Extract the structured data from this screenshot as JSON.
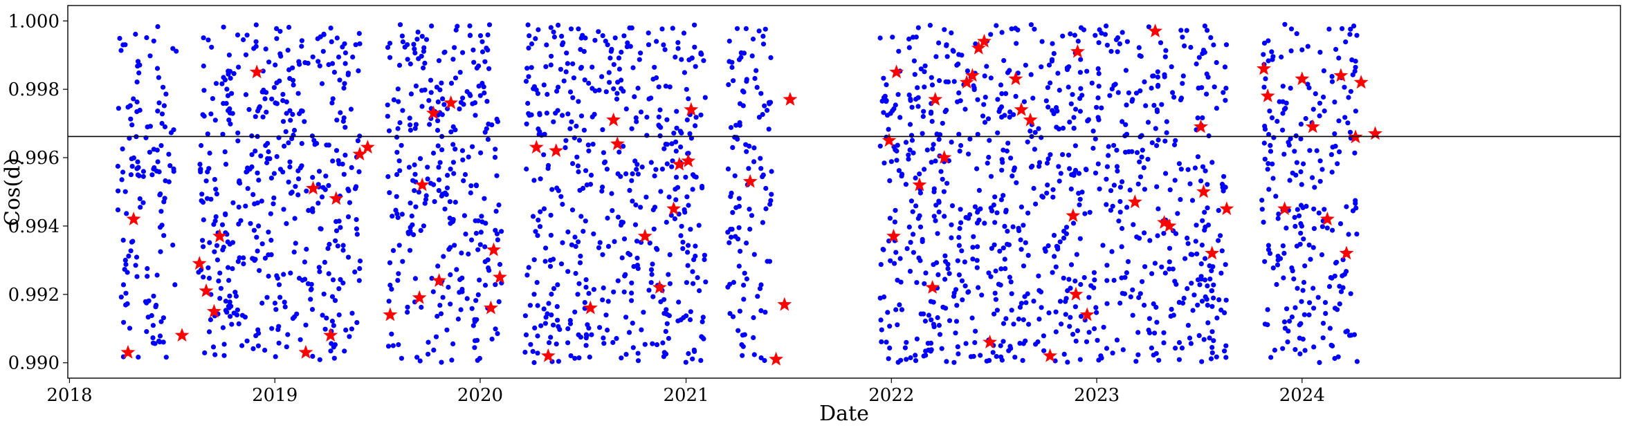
{
  "chart_data": {
    "type": "scatter",
    "xlabel": "Date",
    "ylabel": "Cos(d)",
    "xlim": [
      "2017-12-29",
      "2025-07-20"
    ],
    "ylim": [
      0.98955,
      1.00045
    ],
    "x_ticks": [
      "2018",
      "2019",
      "2020",
      "2021",
      "2022",
      "2023",
      "2024"
    ],
    "y_ticks": [
      "0.990",
      "0.992",
      "0.994",
      "0.996",
      "0.998",
      "1.000"
    ],
    "grid": false,
    "reference_line": {
      "y": 0.99662,
      "color": "#000000"
    },
    "series": [
      {
        "marker": "circle",
        "color": "#0000ff",
        "note_visible": "dense uniform scatter across observation windows",
        "observation_windows": [
          [
            "2018-03-28",
            "2018-07-10"
          ],
          [
            "2018-08-18",
            "2019-06-02"
          ],
          [
            "2019-07-20",
            "2020-02-08"
          ],
          [
            "2020-03-20",
            "2020-10-18"
          ],
          [
            "2020-10-20",
            "2021-02-05"
          ],
          [
            "2021-03-15",
            "2021-06-02"
          ],
          [
            "2021-12-12",
            "2022-01-20"
          ],
          [
            "2022-01-25",
            "2022-09-15"
          ],
          [
            "2022-09-18",
            "2023-08-20"
          ],
          [
            "2023-10-20",
            "2024-04-08"
          ]
        ],
        "count": 2600,
        "y_range": [
          0.99,
          0.9999
        ]
      },
      {
        "marker": "star",
        "color": "#ff0000",
        "points": [
          [
            "2018-04-15",
            0.9903
          ],
          [
            "2018-04-25",
            0.9942
          ],
          [
            "2018-07-20",
            0.9908
          ],
          [
            "2018-08-20",
            0.9929
          ],
          [
            "2018-09-01",
            0.9921
          ],
          [
            "2018-09-15",
            0.9915
          ],
          [
            "2018-09-25",
            0.9937
          ],
          [
            "2018-11-30",
            0.9985
          ],
          [
            "2019-02-25",
            0.9903
          ],
          [
            "2019-03-10",
            0.9951
          ],
          [
            "2019-04-10",
            0.9908
          ],
          [
            "2019-04-20",
            0.9948
          ],
          [
            "2019-06-01",
            0.9961
          ],
          [
            "2019-06-15",
            0.9963
          ],
          [
            "2019-07-25",
            0.9914
          ],
          [
            "2019-09-15",
            0.9919
          ],
          [
            "2019-09-20",
            0.9952
          ],
          [
            "2019-10-10",
            0.9973
          ],
          [
            "2019-10-20",
            0.9924
          ],
          [
            "2019-11-10",
            0.9976
          ],
          [
            "2020-01-20",
            0.9916
          ],
          [
            "2020-01-25",
            0.9933
          ],
          [
            "2020-02-05",
            0.9925
          ],
          [
            "2020-04-10",
            0.9963
          ],
          [
            "2020-05-01",
            0.9902
          ],
          [
            "2020-05-15",
            0.9962
          ],
          [
            "2020-07-15",
            0.9916
          ],
          [
            "2020-08-25",
            0.9971
          ],
          [
            "2020-09-01",
            0.9964
          ],
          [
            "2020-10-20",
            0.9937
          ],
          [
            "2020-11-15",
            0.9922
          ],
          [
            "2020-12-10",
            0.9945
          ],
          [
            "2020-12-20",
            0.9958
          ],
          [
            "2021-01-05",
            0.9959
          ],
          [
            "2021-01-10",
            0.9974
          ],
          [
            "2021-04-25",
            0.9953
          ],
          [
            "2021-06-10",
            0.9901
          ],
          [
            "2021-06-25",
            0.9917
          ],
          [
            "2021-07-05",
            0.9977
          ],
          [
            "2021-12-28",
            0.9965
          ],
          [
            "2022-01-05",
            0.9937
          ],
          [
            "2022-01-10",
            0.9985
          ],
          [
            "2022-02-20",
            0.9952
          ],
          [
            "2022-03-15",
            0.9922
          ],
          [
            "2022-03-20",
            0.9977
          ],
          [
            "2022-04-05",
            0.996
          ],
          [
            "2022-05-15",
            0.9982
          ],
          [
            "2022-05-25",
            0.9984
          ],
          [
            "2022-06-05",
            0.9992
          ],
          [
            "2022-06-15",
            0.9994
          ],
          [
            "2022-06-25",
            0.9906
          ],
          [
            "2022-08-10",
            0.9983
          ],
          [
            "2022-08-20",
            0.9974
          ],
          [
            "2022-09-05",
            0.9971
          ],
          [
            "2022-10-10",
            0.9902
          ],
          [
            "2022-11-20",
            0.9943
          ],
          [
            "2022-11-25",
            0.992
          ],
          [
            "2022-11-28",
            0.9991
          ],
          [
            "2022-12-15",
            0.9914
          ],
          [
            "2023-03-10",
            0.9947
          ],
          [
            "2023-04-15",
            0.9997
          ],
          [
            "2023-05-01",
            0.9941
          ],
          [
            "2023-05-10",
            0.994
          ],
          [
            "2023-07-05",
            0.9969
          ],
          [
            "2023-07-10",
            0.995
          ],
          [
            "2023-07-25",
            0.9932
          ],
          [
            "2023-08-20",
            0.9945
          ],
          [
            "2023-10-25",
            0.9986
          ],
          [
            "2023-11-01",
            0.9978
          ],
          [
            "2023-12-01",
            0.9945
          ],
          [
            "2024-01-01",
            0.9983
          ],
          [
            "2024-01-20",
            0.9969
          ],
          [
            "2024-02-15",
            0.9942
          ],
          [
            "2024-03-10",
            0.9984
          ],
          [
            "2024-03-20",
            0.9932
          ],
          [
            "2024-04-05",
            0.9966
          ],
          [
            "2024-04-15",
            0.9982
          ],
          [
            "2024-05-10",
            0.9967
          ]
        ]
      }
    ]
  }
}
